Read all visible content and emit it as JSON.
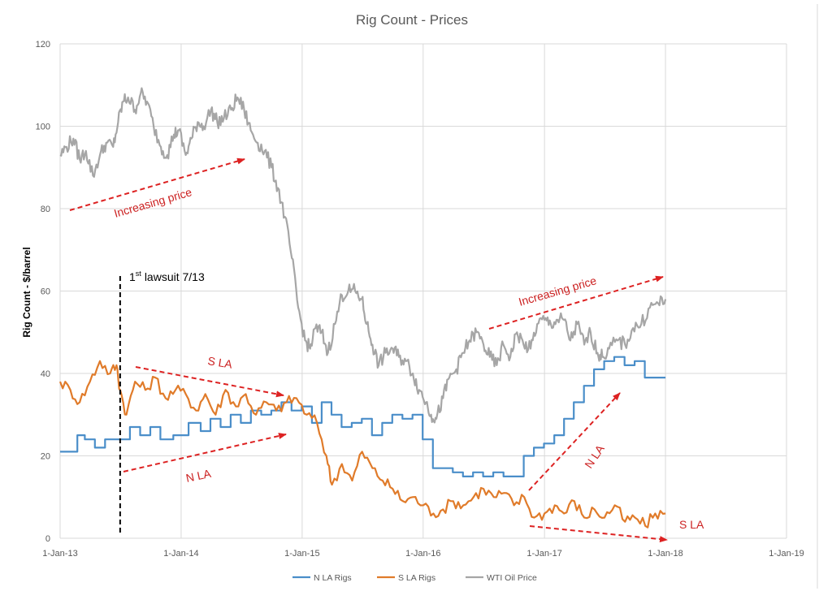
{
  "chart_data": {
    "type": "line",
    "title": "Rig Count - Prices",
    "ylabel": "Rig Count - $/barrel",
    "xlabel": "",
    "ylim": [
      0,
      120
    ],
    "yticks": [
      0,
      20,
      40,
      60,
      80,
      100,
      120
    ],
    "xlim": [
      "2013-01-01",
      "2019-01-01"
    ],
    "xticks": [
      {
        "date": "2013-01-01",
        "label": "1-Jan-13"
      },
      {
        "date": "2014-01-01",
        "label": "1-Jan-14"
      },
      {
        "date": "2015-01-01",
        "label": "1-Jan-15"
      },
      {
        "date": "2016-01-01",
        "label": "1-Jan-16"
      },
      {
        "date": "2017-01-01",
        "label": "1-Jan-17"
      },
      {
        "date": "2018-01-01",
        "label": "1-Jan-18"
      },
      {
        "date": "2019-01-01",
        "label": "1-Jan-19"
      }
    ],
    "grid": true,
    "legend_position": "bottom",
    "series": [
      {
        "name": "N LA Rigs",
        "color": "#4a8ec9",
        "points": [
          [
            "2013-01-01",
            21
          ],
          [
            "2013-02-15",
            21
          ],
          [
            "2013-03-01",
            25
          ],
          [
            "2013-04-01",
            24
          ],
          [
            "2013-05-01",
            22
          ],
          [
            "2013-06-01",
            24
          ],
          [
            "2013-07-15",
            24
          ],
          [
            "2013-08-15",
            27
          ],
          [
            "2013-09-15",
            25
          ],
          [
            "2013-10-15",
            27
          ],
          [
            "2013-11-15",
            24
          ],
          [
            "2014-01-01",
            25
          ],
          [
            "2014-02-15",
            28
          ],
          [
            "2014-03-15",
            26
          ],
          [
            "2014-04-15",
            29
          ],
          [
            "2014-05-15",
            27
          ],
          [
            "2014-06-15",
            30
          ],
          [
            "2014-07-15",
            28
          ],
          [
            "2014-08-15",
            31
          ],
          [
            "2014-09-15",
            30
          ],
          [
            "2014-10-15",
            31
          ],
          [
            "2014-11-15",
            33
          ],
          [
            "2014-12-15",
            31
          ],
          [
            "2015-01-15",
            32
          ],
          [
            "2015-02-15",
            28
          ],
          [
            "2015-03-15",
            33
          ],
          [
            "2015-04-15",
            30
          ],
          [
            "2015-05-15",
            27
          ],
          [
            "2015-06-15",
            28
          ],
          [
            "2015-07-15",
            29
          ],
          [
            "2015-08-15",
            25
          ],
          [
            "2015-09-15",
            28
          ],
          [
            "2015-10-15",
            30
          ],
          [
            "2015-11-15",
            29
          ],
          [
            "2015-12-15",
            30
          ],
          [
            "2016-01-15",
            24
          ],
          [
            "2016-02-15",
            17
          ],
          [
            "2016-03-15",
            17
          ],
          [
            "2016-04-15",
            16
          ],
          [
            "2016-05-15",
            15
          ],
          [
            "2016-06-15",
            16
          ],
          [
            "2016-07-15",
            15
          ],
          [
            "2016-08-15",
            16
          ],
          [
            "2016-09-15",
            15
          ],
          [
            "2016-10-15",
            15
          ],
          [
            "2016-11-15",
            20
          ],
          [
            "2016-12-15",
            22
          ],
          [
            "2017-01-15",
            23
          ],
          [
            "2017-02-15",
            25
          ],
          [
            "2017-03-15",
            29
          ],
          [
            "2017-04-15",
            33
          ],
          [
            "2017-05-15",
            37
          ],
          [
            "2017-06-15",
            41
          ],
          [
            "2017-07-15",
            43
          ],
          [
            "2017-08-15",
            44
          ],
          [
            "2017-09-15",
            42
          ],
          [
            "2017-10-15",
            43
          ],
          [
            "2017-11-15",
            39
          ],
          [
            "2018-01-01",
            39
          ]
        ]
      },
      {
        "name": "S LA Rigs",
        "color": "#e07b2a",
        "points": [
          [
            "2013-01-01",
            38
          ],
          [
            "2013-02-01",
            36
          ],
          [
            "2013-03-01",
            33
          ],
          [
            "2013-04-01",
            38
          ],
          [
            "2013-05-01",
            43
          ],
          [
            "2013-06-01",
            40
          ],
          [
            "2013-06-20",
            42
          ],
          [
            "2013-07-01",
            36
          ],
          [
            "2013-07-20",
            30
          ],
          [
            "2013-08-15",
            38
          ],
          [
            "2013-09-15",
            36
          ],
          [
            "2013-10-15",
            39
          ],
          [
            "2013-11-15",
            34
          ],
          [
            "2013-12-15",
            36
          ],
          [
            "2014-01-15",
            35
          ],
          [
            "2014-02-15",
            31
          ],
          [
            "2014-03-15",
            35
          ],
          [
            "2014-04-15",
            30
          ],
          [
            "2014-05-15",
            36
          ],
          [
            "2014-06-15",
            32
          ],
          [
            "2014-07-15",
            35
          ],
          [
            "2014-08-15",
            30
          ],
          [
            "2014-09-15",
            33
          ],
          [
            "2014-10-15",
            31
          ],
          [
            "2014-11-15",
            33
          ],
          [
            "2014-12-15",
            34
          ],
          [
            "2015-01-15",
            30
          ],
          [
            "2015-02-15",
            28
          ],
          [
            "2015-03-15",
            20
          ],
          [
            "2015-04-01",
            13
          ],
          [
            "2015-05-01",
            18
          ],
          [
            "2015-06-01",
            14
          ],
          [
            "2015-07-01",
            21
          ],
          [
            "2015-08-01",
            17
          ],
          [
            "2015-09-01",
            14
          ],
          [
            "2015-10-01",
            12
          ],
          [
            "2015-11-01",
            9
          ],
          [
            "2015-12-01",
            10
          ],
          [
            "2016-01-01",
            8
          ],
          [
            "2016-02-01",
            6
          ],
          [
            "2016-03-01",
            7
          ],
          [
            "2016-04-01",
            9
          ],
          [
            "2016-05-01",
            8
          ],
          [
            "2016-06-01",
            10
          ],
          [
            "2016-07-01",
            12
          ],
          [
            "2016-08-01",
            10
          ],
          [
            "2016-09-01",
            11
          ],
          [
            "2016-10-01",
            8
          ],
          [
            "2016-11-01",
            10
          ],
          [
            "2016-12-01",
            5
          ],
          [
            "2017-01-01",
            6
          ],
          [
            "2017-02-01",
            8
          ],
          [
            "2017-03-01",
            6
          ],
          [
            "2017-04-01",
            9
          ],
          [
            "2017-05-01",
            5
          ],
          [
            "2017-06-01",
            7
          ],
          [
            "2017-07-01",
            5
          ],
          [
            "2017-08-01",
            8
          ],
          [
            "2017-09-01",
            4
          ],
          [
            "2017-10-01",
            5
          ],
          [
            "2017-11-01",
            3
          ],
          [
            "2017-12-01",
            6
          ],
          [
            "2018-01-01",
            6
          ]
        ]
      },
      {
        "name": "WTI Oil Price",
        "color": "#a6a6a6",
        "points": [
          [
            "2013-01-01",
            93
          ],
          [
            "2013-01-20",
            95
          ],
          [
            "2013-02-10",
            97
          ],
          [
            "2013-03-01",
            92
          ],
          [
            "2013-03-20",
            94
          ],
          [
            "2013-04-10",
            88
          ],
          [
            "2013-05-01",
            93
          ],
          [
            "2013-05-20",
            96
          ],
          [
            "2013-06-10",
            95
          ],
          [
            "2013-06-25",
            101
          ],
          [
            "2013-07-10",
            106
          ],
          [
            "2013-07-25",
            107
          ],
          [
            "2013-08-15",
            104
          ],
          [
            "2013-09-01",
            108
          ],
          [
            "2013-09-20",
            106
          ],
          [
            "2013-10-10",
            100
          ],
          [
            "2013-11-01",
            95
          ],
          [
            "2013-11-20",
            93
          ],
          [
            "2013-12-10",
            98
          ],
          [
            "2013-12-25",
            99
          ],
          [
            "2014-01-15",
            93
          ],
          [
            "2014-02-01",
            97
          ],
          [
            "2014-02-20",
            101
          ],
          [
            "2014-03-10",
            100
          ],
          [
            "2014-04-01",
            104
          ],
          [
            "2014-04-20",
            101
          ],
          [
            "2014-05-10",
            102
          ],
          [
            "2014-06-01",
            104
          ],
          [
            "2014-06-20",
            107
          ],
          [
            "2014-07-10",
            104
          ],
          [
            "2014-07-30",
            99
          ],
          [
            "2014-08-20",
            96
          ],
          [
            "2014-09-10",
            94
          ],
          [
            "2014-10-01",
            90
          ],
          [
            "2014-10-20",
            85
          ],
          [
            "2014-11-10",
            78
          ],
          [
            "2014-12-01",
            68
          ],
          [
            "2014-12-20",
            56
          ],
          [
            "2015-01-10",
            48
          ],
          [
            "2015-01-25",
            46
          ],
          [
            "2015-02-10",
            51
          ],
          [
            "2015-03-01",
            50
          ],
          [
            "2015-03-20",
            45
          ],
          [
            "2015-04-10",
            52
          ],
          [
            "2015-05-01",
            59
          ],
          [
            "2015-05-20",
            60
          ],
          [
            "2015-06-10",
            60
          ],
          [
            "2015-06-30",
            58
          ],
          [
            "2015-07-15",
            52
          ],
          [
            "2015-08-01",
            47
          ],
          [
            "2015-08-20",
            42
          ],
          [
            "2015-09-10",
            45
          ],
          [
            "2015-10-01",
            46
          ],
          [
            "2015-10-20",
            44
          ],
          [
            "2015-11-10",
            43
          ],
          [
            "2015-12-01",
            40
          ],
          [
            "2015-12-20",
            36
          ],
          [
            "2016-01-10",
            33
          ],
          [
            "2016-01-25",
            30
          ],
          [
            "2016-02-10",
            29
          ],
          [
            "2016-03-01",
            34
          ],
          [
            "2016-03-20",
            39
          ],
          [
            "2016-04-10",
            41
          ],
          [
            "2016-05-01",
            45
          ],
          [
            "2016-05-20",
            48
          ],
          [
            "2016-06-10",
            50
          ],
          [
            "2016-07-01",
            47
          ],
          [
            "2016-07-20",
            44
          ],
          [
            "2016-08-10",
            42
          ],
          [
            "2016-08-30",
            47
          ],
          [
            "2016-09-20",
            44
          ],
          [
            "2016-10-10",
            50
          ],
          [
            "2016-10-30",
            47
          ],
          [
            "2016-11-20",
            46
          ],
          [
            "2016-12-10",
            52
          ],
          [
            "2017-01-01",
            53
          ],
          [
            "2017-01-20",
            52
          ],
          [
            "2017-02-10",
            53
          ],
          [
            "2017-03-01",
            53
          ],
          [
            "2017-03-20",
            48
          ],
          [
            "2017-04-10",
            52
          ],
          [
            "2017-05-01",
            47
          ],
          [
            "2017-05-20",
            50
          ],
          [
            "2017-06-10",
            45
          ],
          [
            "2017-06-25",
            44
          ],
          [
            "2017-07-15",
            46
          ],
          [
            "2017-08-10",
            48
          ],
          [
            "2017-09-01",
            47
          ],
          [
            "2017-09-25",
            51
          ],
          [
            "2017-10-20",
            52
          ],
          [
            "2017-11-15",
            56
          ],
          [
            "2017-12-10",
            57
          ],
          [
            "2018-01-01",
            58
          ]
        ]
      }
    ],
    "annotations": {
      "lawsuit_base": "st",
      "lawsuit_sup_prefix": "1",
      "lawsuit_rest": "lawsuit 7/13",
      "lawsuit_date": "2013-07-01",
      "increasing_price_1": "Increasing price",
      "increasing_price_2": "Increasing price",
      "s_la_top": "S LA",
      "n_la_left": "N LA",
      "n_la_right": "N LA",
      "s_la_right": "S LA"
    }
  },
  "colors": {
    "arrow": "#dd2222",
    "grid": "#d9d9d9",
    "axis_text": "#595959"
  }
}
